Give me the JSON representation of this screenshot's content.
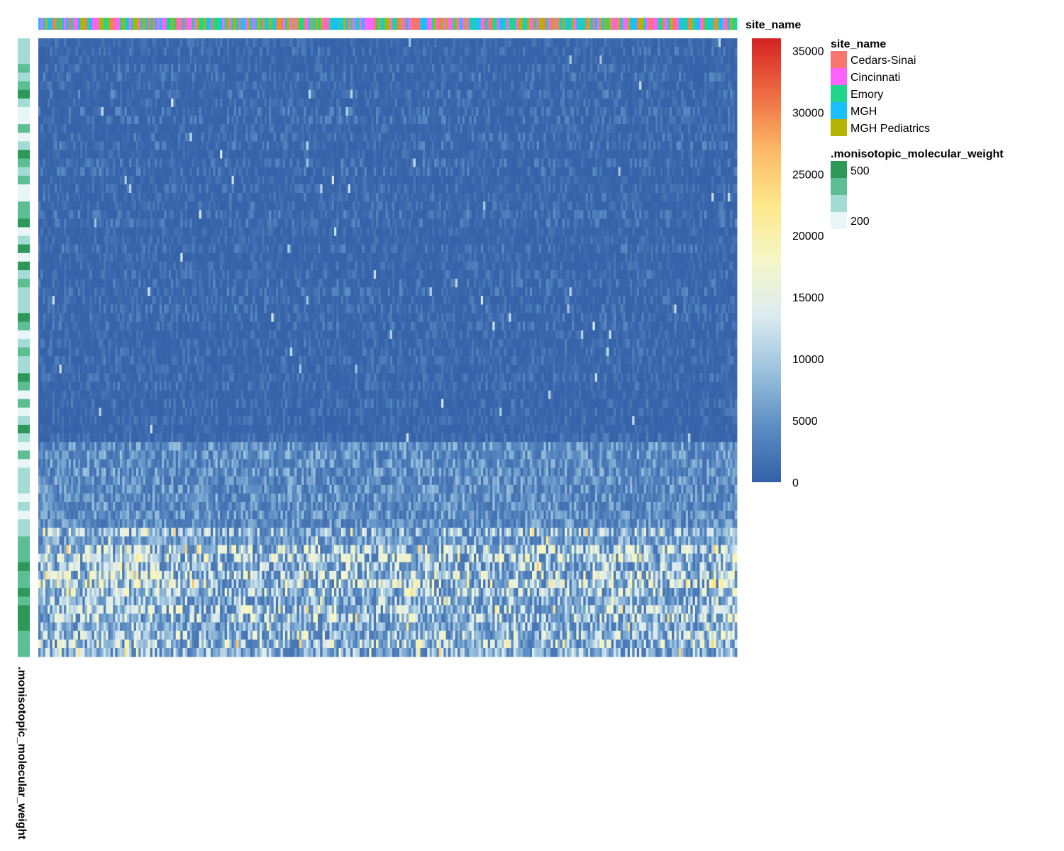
{
  "chart_data": {
    "type": "heatmap",
    "top_annotation": {
      "title": "site_name",
      "legend_title": "site_name",
      "categories": [
        {
          "name": "Cedars-Sinai",
          "color": "#F8766D"
        },
        {
          "name": "Cincinnati",
          "color": "#FF61FF"
        },
        {
          "name": "Emory",
          "color": "#1FD68A"
        },
        {
          "name": "MGH",
          "color": "#18C0FF"
        },
        {
          "name": "MGH Pediatrics",
          "color": "#B2B400"
        }
      ]
    },
    "left_annotation": {
      "title": ".monisotopic_molecular_weight",
      "legend_title": ".monisotopic_molecular_weight",
      "legend_labels": [
        "500",
        "200"
      ],
      "colors": [
        "#2D9959",
        "#5DBE94",
        "#A3DCD4",
        "#E8F6F8"
      ]
    },
    "color_scale": {
      "min": 0,
      "max": 36000,
      "ticks": [
        "0",
        "5000",
        "10000",
        "15000",
        "20000",
        "25000",
        "30000",
        "35000"
      ],
      "colors": [
        "#3460A8",
        "#5C8DC3",
        "#9BC2DD",
        "#DCEBF0",
        "#F5F7C7",
        "#FEE88A",
        "#FBB866",
        "#EE6B43",
        "#D52221"
      ]
    },
    "n_rows": 72,
    "n_cols": 300,
    "row_groups": [
      {
        "rows": [
          0,
          46
        ],
        "level": "low",
        "value_range": [
          200,
          3500
        ]
      },
      {
        "rows": [
          47,
          56
        ],
        "level": "medium",
        "value_range": [
          1500,
          9000
        ]
      },
      {
        "rows": [
          57,
          71
        ],
        "level": "high",
        "value_range": [
          2000,
          22000
        ]
      }
    ]
  }
}
